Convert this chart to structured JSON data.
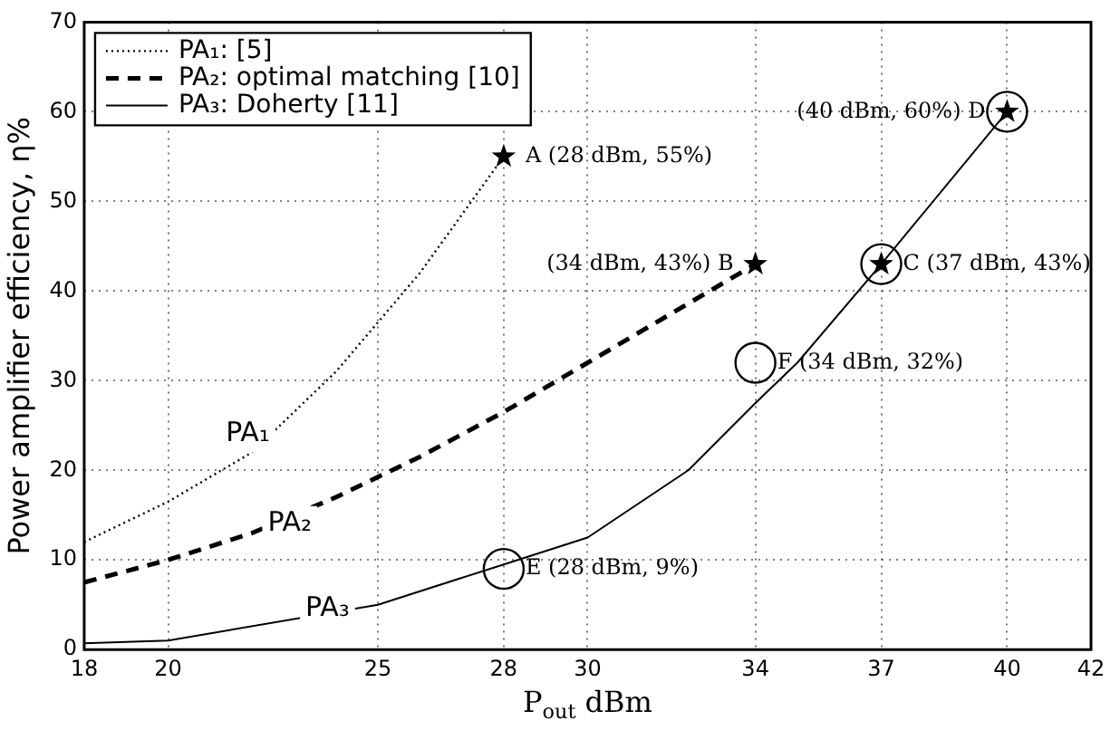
{
  "chart_data": {
    "type": "line",
    "xlabel": "P$_{out}$ dBm",
    "ylabel": "Power amplifier efficiency, η%",
    "xlim": [
      18,
      42
    ],
    "ylim": [
      0,
      70
    ],
    "xticks": [
      18,
      20,
      25,
      28,
      30,
      34,
      37,
      40,
      42
    ],
    "yticks": [
      0,
      10,
      20,
      30,
      40,
      50,
      60,
      70
    ],
    "grid": true,
    "legend": "top left",
    "series": [
      {
        "name": "PA₁: [5]",
        "color": "#000000",
        "line_style": "dotted",
        "x": [
          18,
          20,
          22,
          24,
          26,
          28
        ],
        "values": [
          12,
          16.5,
          22,
          31,
          42,
          55
        ]
      },
      {
        "name": "PA₂: optimal matching [10]",
        "color": "#000000",
        "line_style": "dashed",
        "x": [
          18,
          20,
          22,
          24,
          26,
          28,
          30,
          32,
          34
        ],
        "values": [
          7.5,
          10,
          13,
          17,
          21.5,
          26.5,
          32,
          37.5,
          43
        ]
      },
      {
        "name": "PA₃: Doherty [11]",
        "color": "#000000",
        "line_style": "solid",
        "x": [
          18,
          20,
          25,
          28,
          30,
          32.4,
          34,
          35,
          37,
          40
        ],
        "values": [
          0.7,
          1,
          5,
          9.5,
          12.5,
          20,
          27.5,
          32,
          43,
          60
        ]
      },
      {
        "type": "scatter",
        "marker": "star",
        "color": "#000000",
        "x": [
          28,
          34,
          37,
          40
        ],
        "values": [
          55,
          43,
          43,
          60
        ]
      },
      {
        "type": "scatter",
        "marker": "circle",
        "color": "#000000",
        "x": [
          28,
          34,
          37,
          40
        ],
        "values": [
          9,
          32,
          43,
          60
        ]
      }
    ],
    "annotations": [
      {
        "text": "A (28 dBm, 55%)",
        "x": 28,
        "y": 55
      },
      {
        "text": "(34 dBm, 43%) B",
        "x": 34,
        "y": 43
      },
      {
        "text": "C (37 dBm, 43%)",
        "x": 37,
        "y": 43
      },
      {
        "text": "(40 dBm, 60%) D",
        "x": 40,
        "y": 60
      },
      {
        "text": "E (28 dBm, 9%)",
        "x": 28,
        "y": 9
      },
      {
        "text": "F (34 dBm, 32%)",
        "x": 34,
        "y": 32
      },
      {
        "text": "PA₁",
        "x": 21.9,
        "y": 24
      },
      {
        "text": "PA₂",
        "x": 22.9,
        "y": 14
      },
      {
        "text": "PA₃",
        "x": 23.8,
        "y": 4.5
      }
    ]
  }
}
